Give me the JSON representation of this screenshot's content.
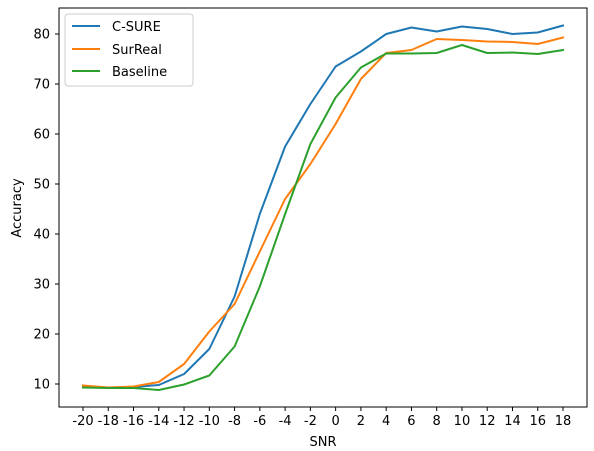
{
  "chart_data": {
    "type": "line",
    "title": "",
    "xlabel": "SNR",
    "ylabel": "Accuracy",
    "x": [
      -20,
      -18,
      -16,
      -14,
      -12,
      -10,
      -8,
      -6,
      -4,
      -2,
      0,
      2,
      4,
      6,
      8,
      10,
      12,
      14,
      16,
      18
    ],
    "xticklabels": [
      "-20",
      "-18",
      "-16",
      "-14",
      "-12",
      "-10",
      "-8",
      "-6",
      "-4",
      "-2",
      "0",
      "2",
      "4",
      "6",
      "8",
      "10",
      "12",
      "14",
      "16",
      "18"
    ],
    "yticks": [
      10,
      20,
      30,
      40,
      50,
      60,
      70,
      80
    ],
    "yticklabels": [
      "10",
      "20",
      "30",
      "40",
      "50",
      "60",
      "70",
      "80"
    ],
    "xlim": [
      -21.9,
      19.9
    ],
    "ylim": [
      5.4,
      85.2
    ],
    "grid": false,
    "legend_position": "top-left",
    "series": [
      {
        "name": "C-SURE",
        "color": "#1f77b4",
        "values": [
          9.4,
          9.3,
          9.4,
          9.8,
          12.0,
          17.0,
          27.5,
          44.0,
          57.5,
          66.0,
          73.5,
          76.5,
          80.0,
          81.3,
          80.5,
          81.5,
          81.0,
          80.0,
          80.3,
          81.7
        ]
      },
      {
        "name": "SurReal",
        "color": "#ff7f0e",
        "values": [
          9.7,
          9.3,
          9.5,
          10.4,
          14.0,
          20.5,
          26.0,
          36.5,
          47.0,
          54.0,
          62.0,
          71.0,
          76.2,
          76.8,
          79.0,
          78.8,
          78.5,
          78.4,
          78.0,
          79.3
        ]
      },
      {
        "name": "Baseline",
        "color": "#2ca02c",
        "values": [
          9.3,
          9.2,
          9.2,
          8.8,
          9.9,
          11.7,
          17.5,
          29.5,
          44.0,
          58.0,
          67.3,
          73.3,
          76.1,
          76.1,
          76.2,
          77.8,
          76.2,
          76.3,
          76.0,
          76.8
        ]
      }
    ]
  }
}
